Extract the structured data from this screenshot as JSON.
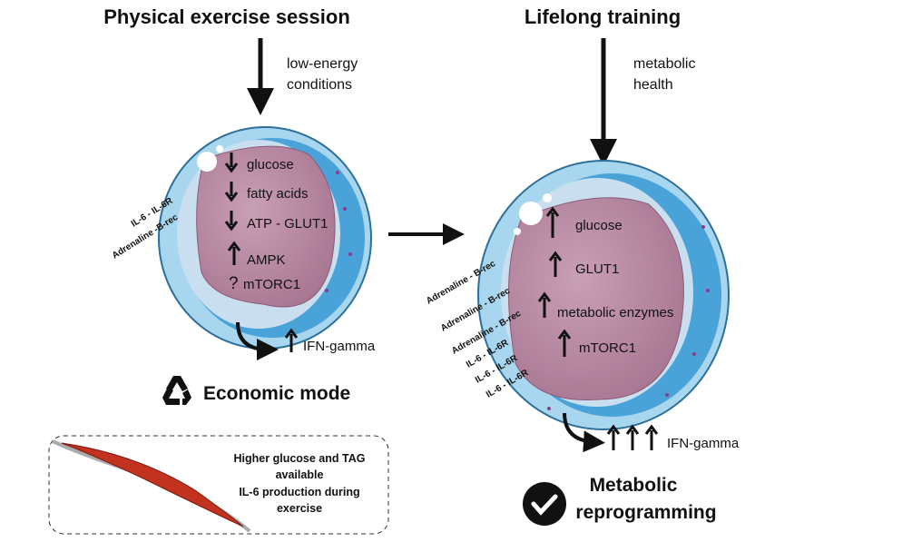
{
  "left": {
    "title": "Physical exercise session",
    "input_label": [
      "low-energy",
      "conditions"
    ],
    "receptors": [
      "IL-6 - IL-6R",
      "Adrenaline -B-rec"
    ],
    "cell_items": [
      {
        "arrow": "down",
        "label": "glucose"
      },
      {
        "arrow": "down",
        "label": "fatty acids"
      },
      {
        "arrow": "down",
        "label": "ATP - GLUT1"
      },
      {
        "arrow": "up",
        "label": "AMPK"
      },
      {
        "arrow": "unknown",
        "symbol": "?",
        "label": "mTORC1"
      }
    ],
    "output": {
      "arrows": 1,
      "label": "IFN-gamma"
    },
    "mode": {
      "icon": "recycle-icon",
      "label": "Economic mode"
    }
  },
  "right": {
    "title": "Lifelong training",
    "input_label": [
      "metabolic",
      "health"
    ],
    "receptors": [
      "Adrenaline - B-rec",
      "Adrenaline - B-rec",
      "Adrenaline - B-rec",
      "IL-6 - IL-6R",
      "IL-6 - IL-6R",
      "IL-6 - IL-6R"
    ],
    "cell_items": [
      {
        "arrow": "up",
        "label": "glucose"
      },
      {
        "arrow": "up",
        "label": "GLUT1"
      },
      {
        "arrow": "up",
        "label": "metabolic enzymes"
      },
      {
        "arrow": "up",
        "label": "mTORC1"
      }
    ],
    "output": {
      "arrows": 3,
      "label": "IFN-gamma"
    },
    "mode": {
      "icon": "checkmark-icon",
      "label": [
        "Metabolic",
        "reprogramming"
      ]
    }
  },
  "muscle_box": {
    "icon": "muscle-icon",
    "text": [
      "Higher glucose and TAG",
      "available",
      "IL-6 production during",
      "exercise"
    ]
  },
  "colors": {
    "membrane": "#9fd0ec",
    "membrane_dark": "#3a97cf",
    "nucleus": "#b98aa3",
    "dots": "#8a3c8c",
    "muscle": "#c2321f"
  }
}
